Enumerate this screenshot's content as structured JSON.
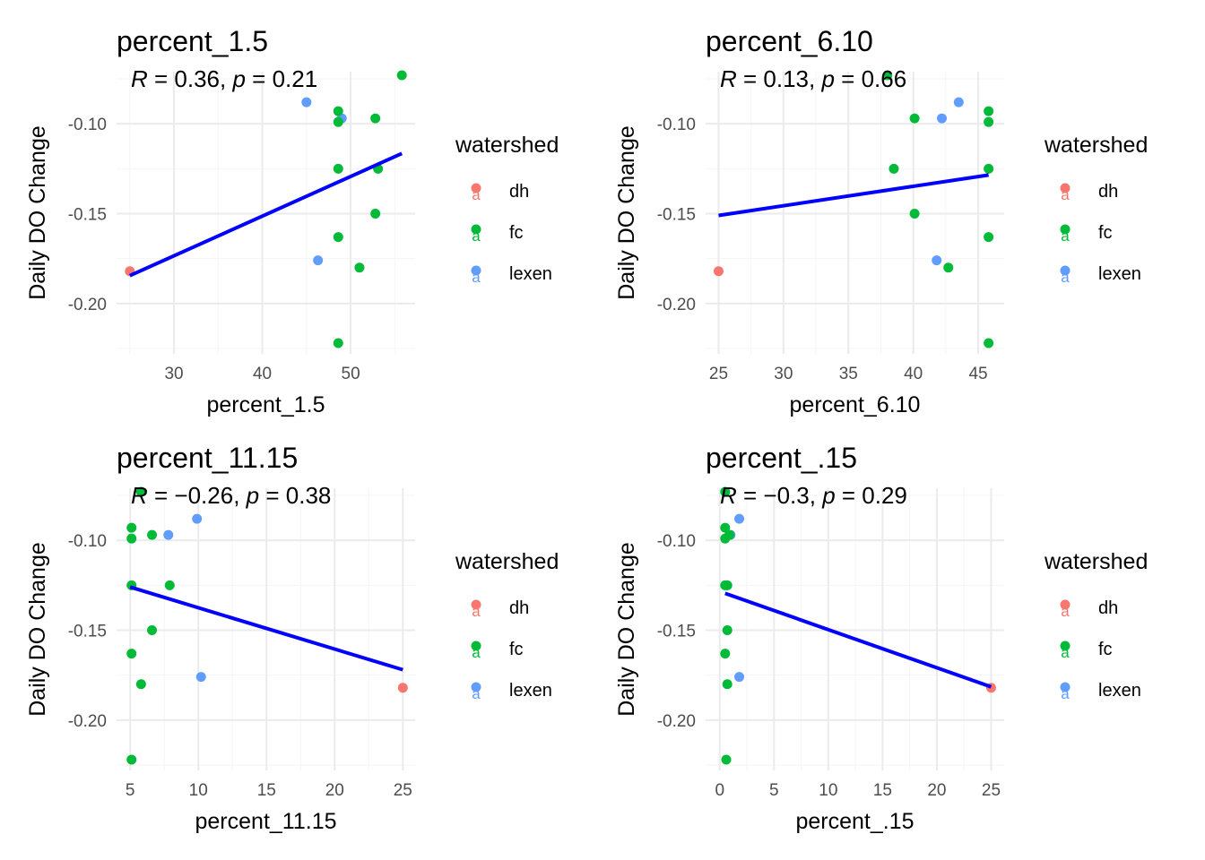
{
  "chart_data": [
    {
      "type": "scatter",
      "title": "percent_1.5",
      "xlabel": "percent_1.5",
      "ylabel": "Daily DO Change",
      "xlim": [
        23.5,
        57.3
      ],
      "ylim": [
        -0.228,
        -0.071
      ],
      "xticks": [
        30,
        40,
        50
      ],
      "yticks": [
        -0.1,
        -0.15,
        -0.2
      ],
      "ytick_labels": [
        "-0.10",
        "-0.15",
        "-0.20"
      ],
      "stat_label": {
        "r": "0.36",
        "p": "0.21"
      },
      "points": [
        {
          "x": 25.0,
          "y": -0.182,
          "group": "dh"
        },
        {
          "x": 45.0,
          "y": -0.088,
          "group": "lexen"
        },
        {
          "x": 49.0,
          "y": -0.097,
          "group": "lexen"
        },
        {
          "x": 46.3,
          "y": -0.176,
          "group": "lexen"
        },
        {
          "x": 55.8,
          "y": -0.073,
          "group": "fc"
        },
        {
          "x": 48.6,
          "y": -0.093,
          "group": "fc"
        },
        {
          "x": 48.6,
          "y": -0.099,
          "group": "fc"
        },
        {
          "x": 52.8,
          "y": -0.097,
          "group": "fc"
        },
        {
          "x": 48.6,
          "y": -0.125,
          "group": "fc"
        },
        {
          "x": 53.1,
          "y": -0.125,
          "group": "fc"
        },
        {
          "x": 52.8,
          "y": -0.15,
          "group": "fc"
        },
        {
          "x": 48.6,
          "y": -0.163,
          "group": "fc"
        },
        {
          "x": 51.0,
          "y": -0.18,
          "group": "fc"
        },
        {
          "x": 48.6,
          "y": -0.222,
          "group": "fc"
        }
      ],
      "fit_line": {
        "x": [
          25.0,
          55.8
        ],
        "y": [
          -0.1845,
          -0.1165
        ]
      }
    },
    {
      "type": "scatter",
      "title": "percent_6.10",
      "xlabel": "percent_6.10",
      "ylabel": "Daily DO Change",
      "xlim": [
        24.0,
        47.0
      ],
      "ylim": [
        -0.228,
        -0.071
      ],
      "xticks": [
        25,
        30,
        35,
        40,
        45
      ],
      "yticks": [
        -0.1,
        -0.15,
        -0.2
      ],
      "ytick_labels": [
        "-0.10",
        "-0.15",
        "-0.20"
      ],
      "stat_label": {
        "r": "0.13",
        "p": "0.66"
      },
      "points": [
        {
          "x": 25.0,
          "y": -0.182,
          "group": "dh"
        },
        {
          "x": 43.5,
          "y": -0.088,
          "group": "lexen"
        },
        {
          "x": 42.2,
          "y": -0.097,
          "group": "lexen"
        },
        {
          "x": 41.8,
          "y": -0.176,
          "group": "lexen"
        },
        {
          "x": 38.0,
          "y": -0.073,
          "group": "fc"
        },
        {
          "x": 45.8,
          "y": -0.093,
          "group": "fc"
        },
        {
          "x": 45.8,
          "y": -0.099,
          "group": "fc"
        },
        {
          "x": 40.1,
          "y": -0.097,
          "group": "fc"
        },
        {
          "x": 38.5,
          "y": -0.125,
          "group": "fc"
        },
        {
          "x": 45.8,
          "y": -0.125,
          "group": "fc"
        },
        {
          "x": 40.1,
          "y": -0.15,
          "group": "fc"
        },
        {
          "x": 45.8,
          "y": -0.163,
          "group": "fc"
        },
        {
          "x": 42.7,
          "y": -0.18,
          "group": "fc"
        },
        {
          "x": 45.8,
          "y": -0.222,
          "group": "fc"
        }
      ],
      "fit_line": {
        "x": [
          25.0,
          45.8
        ],
        "y": [
          -0.151,
          -0.1285
        ]
      }
    },
    {
      "type": "scatter",
      "title": "percent_11.15",
      "xlabel": "percent_11.15",
      "ylabel": "Daily DO Change",
      "xlim": [
        4.0,
        25.9
      ],
      "ylim": [
        -0.228,
        -0.071
      ],
      "xticks": [
        5,
        10,
        15,
        20,
        25
      ],
      "yticks": [
        -0.1,
        -0.15,
        -0.2
      ],
      "ytick_labels": [
        "-0.10",
        "-0.15",
        "-0.20"
      ],
      "stat_label": {
        "r": "0.26",
        "p": "0.38"
      },
      "points": [
        {
          "x": 25.0,
          "y": -0.182,
          "group": "dh"
        },
        {
          "x": 9.9,
          "y": -0.088,
          "group": "lexen"
        },
        {
          "x": 7.8,
          "y": -0.097,
          "group": "lexen"
        },
        {
          "x": 10.2,
          "y": -0.176,
          "group": "lexen"
        },
        {
          "x": 5.8,
          "y": -0.073,
          "group": "fc"
        },
        {
          "x": 5.1,
          "y": -0.093,
          "group": "fc"
        },
        {
          "x": 5.1,
          "y": -0.099,
          "group": "fc"
        },
        {
          "x": 6.6,
          "y": -0.097,
          "group": "fc"
        },
        {
          "x": 5.1,
          "y": -0.125,
          "group": "fc"
        },
        {
          "x": 7.9,
          "y": -0.125,
          "group": "fc"
        },
        {
          "x": 6.6,
          "y": -0.15,
          "group": "fc"
        },
        {
          "x": 5.1,
          "y": -0.163,
          "group": "fc"
        },
        {
          "x": 5.8,
          "y": -0.18,
          "group": "fc"
        },
        {
          "x": 5.1,
          "y": -0.222,
          "group": "fc"
        }
      ],
      "fit_line": {
        "x": [
          5.0,
          25.0
        ],
        "y": [
          -0.126,
          -0.172
        ]
      }
    },
    {
      "type": "scatter",
      "title": "percent_.15",
      "xlabel": "percent_.15",
      "ylabel": "Daily DO Change",
      "xlim": [
        -1.3,
        26.2
      ],
      "ylim": [
        -0.228,
        -0.071
      ],
      "xticks": [
        0,
        5,
        10,
        15,
        20,
        25
      ],
      "yticks": [
        -0.1,
        -0.15,
        -0.2
      ],
      "ytick_labels": [
        "-0.10",
        "-0.15",
        "-0.20"
      ],
      "stat_label": {
        "r": "0.3",
        "p": "0.29"
      },
      "points": [
        {
          "x": 25.0,
          "y": -0.182,
          "group": "dh"
        },
        {
          "x": 1.8,
          "y": -0.088,
          "group": "lexen"
        },
        {
          "x": 1.0,
          "y": -0.097,
          "group": "lexen"
        },
        {
          "x": 1.8,
          "y": -0.176,
          "group": "lexen"
        },
        {
          "x": 0.5,
          "y": -0.073,
          "group": "fc"
        },
        {
          "x": 0.5,
          "y": -0.093,
          "group": "fc"
        },
        {
          "x": 0.5,
          "y": -0.099,
          "group": "fc"
        },
        {
          "x": 0.9,
          "y": -0.097,
          "group": "fc"
        },
        {
          "x": 0.5,
          "y": -0.125,
          "group": "fc"
        },
        {
          "x": 0.7,
          "y": -0.125,
          "group": "fc"
        },
        {
          "x": 0.7,
          "y": -0.15,
          "group": "fc"
        },
        {
          "x": 0.5,
          "y": -0.163,
          "group": "fc"
        },
        {
          "x": 0.7,
          "y": -0.18,
          "group": "fc"
        },
        {
          "x": 0.6,
          "y": -0.222,
          "group": "fc"
        }
      ],
      "fit_line": {
        "x": [
          0.5,
          25.0
        ],
        "y": [
          -0.1295,
          -0.1815
        ]
      }
    }
  ],
  "legend": {
    "title": "watershed",
    "items": [
      {
        "label": "dh",
        "color": "#F8766D",
        "glyph": "a"
      },
      {
        "label": "fc",
        "color": "#00BA38",
        "glyph": "a"
      },
      {
        "label": "lexen",
        "color": "#619CFF",
        "glyph": "a"
      }
    ]
  },
  "stat_text": {
    "r_symbol": "R",
    "p_symbol": "p",
    "equals": " = ",
    "separator": ", ",
    "minus": "−"
  },
  "style": {
    "fit_color": "#0000FF",
    "grid_color": "#EBEBEB",
    "grid_minor_color": "#F5F5F5"
  }
}
